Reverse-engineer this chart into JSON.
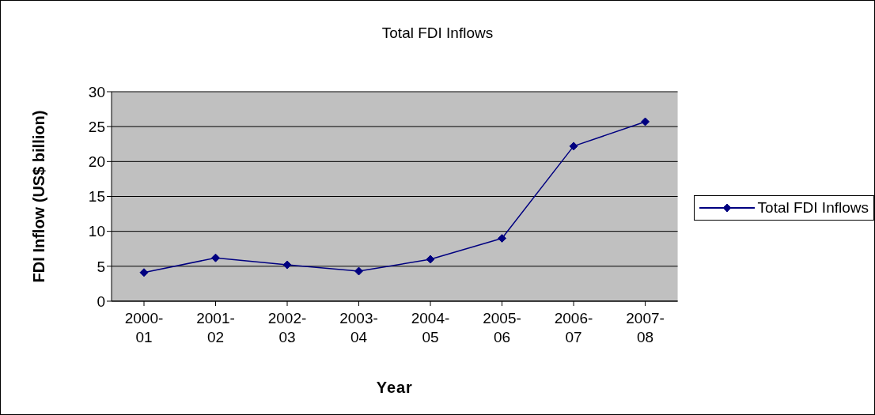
{
  "chart_data": {
    "type": "line",
    "title": "Total FDI Inflows",
    "xlabel": "Year",
    "ylabel": "FDI Inflow (US$ billion)",
    "categories": [
      "2000-01",
      "2001-02",
      "2002-03",
      "2003-04",
      "2004-05",
      "2005-06",
      "2006-07",
      "2007-08"
    ],
    "series": [
      {
        "name": "Total FDI Inflows",
        "color": "#000080",
        "values": [
          4.1,
          6.2,
          5.2,
          4.3,
          6.0,
          9.0,
          22.2,
          25.7
        ]
      }
    ],
    "ylim": [
      0,
      30
    ],
    "yticks": [
      0,
      5,
      10,
      15,
      20,
      25,
      30
    ],
    "grid": "y",
    "legend": "right",
    "marker": "diamond",
    "line_style": "solid"
  }
}
